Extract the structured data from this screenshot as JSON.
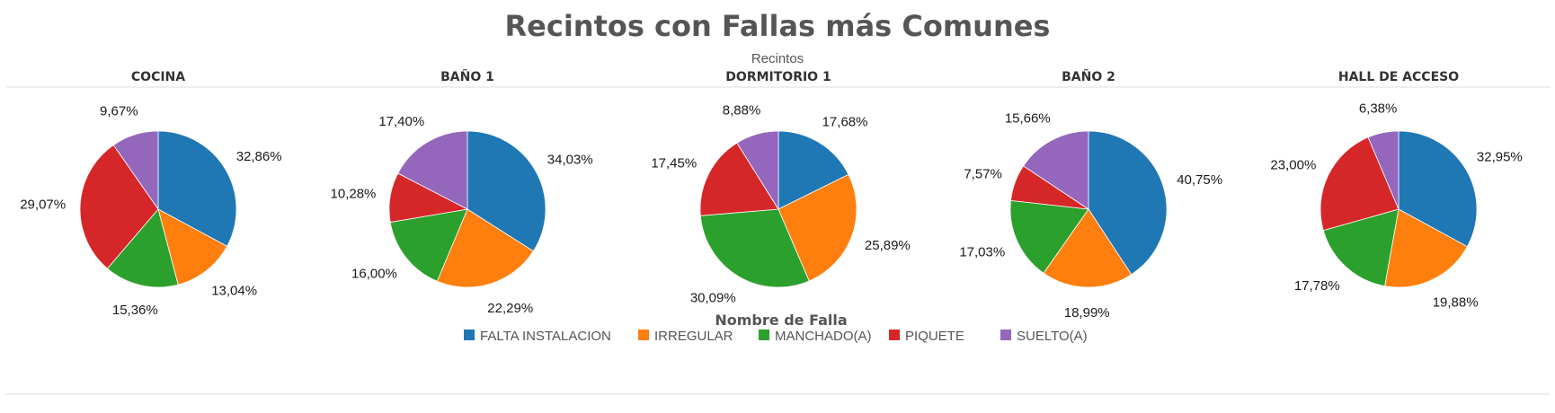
{
  "chart_data": {
    "type": "pie",
    "title": "Recintos con Fallas más Comunes",
    "subtitle": "Recintos",
    "legend_title": "Nombre de Falla",
    "legend_placement": "bottom-center",
    "categories": [
      "FALTA INSTALACION",
      "IRREGULAR",
      "MANCHADO(A)",
      "PIQUETE",
      "SUELTO(A)"
    ],
    "colors": [
      "#1f77b4",
      "#ff7f0e",
      "#2ca02c",
      "#d62728",
      "#9467bd"
    ],
    "pies": [
      {
        "name": "COCINA",
        "values": [
          32.86,
          13.04,
          15.36,
          29.07,
          9.67
        ],
        "labels": [
          "32,86%",
          "13,04%",
          "15,36%",
          "29,07%",
          "9,67%"
        ]
      },
      {
        "name": "BAÑO 1",
        "values": [
          34.03,
          22.29,
          16.0,
          10.28,
          17.4
        ],
        "labels": [
          "34,03%",
          "22,29%",
          "16,00%",
          "10,28%",
          "17,40%"
        ]
      },
      {
        "name": "DORMITORIO 1",
        "values": [
          17.68,
          25.89,
          30.09,
          17.45,
          8.88
        ],
        "labels": [
          "17,68%",
          "25,89%",
          "30,09%",
          "17,45%",
          "8,88%"
        ]
      },
      {
        "name": "BAÑO 2",
        "values": [
          40.75,
          18.99,
          17.03,
          7.57,
          15.66
        ],
        "labels": [
          "40,75%",
          "18,99%",
          "17,03%",
          "7,57%",
          "15,66%"
        ]
      },
      {
        "name": "HALL DE ACCESO",
        "values": [
          32.95,
          19.88,
          17.78,
          23.0,
          6.38
        ],
        "labels": [
          "32,95%",
          "19,88%",
          "17,78%",
          "23,00%",
          "6,38%"
        ]
      }
    ]
  }
}
